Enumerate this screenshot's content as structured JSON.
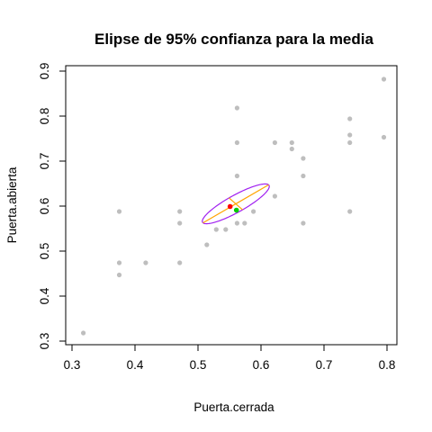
{
  "chart_data": {
    "type": "scatter",
    "title": "Elipse de 95% confianza para la media",
    "xlabel": "Puerta.cerrada",
    "ylabel": "Puerta.abierta",
    "xlim": [
      0.3,
      0.8
    ],
    "ylim": [
      0.3,
      0.9
    ],
    "xticks": [
      0.3,
      0.4,
      0.5,
      0.6,
      0.7,
      0.8
    ],
    "yticks": [
      0.3,
      0.4,
      0.5,
      0.6,
      0.7,
      0.8,
      0.9
    ],
    "grid": false,
    "colors": {
      "points": "#bebebe",
      "ellipse": "#a020f0",
      "axes_lines": "#ffa500",
      "mean_point": "#ff0000",
      "center_point": "#00cd00"
    },
    "points": [
      [
        0.318,
        0.318
      ],
      [
        0.375,
        0.588
      ],
      [
        0.375,
        0.474
      ],
      [
        0.375,
        0.447
      ],
      [
        0.417,
        0.474
      ],
      [
        0.471,
        0.588
      ],
      [
        0.471,
        0.562
      ],
      [
        0.471,
        0.474
      ],
      [
        0.514,
        0.514
      ],
      [
        0.529,
        0.548
      ],
      [
        0.544,
        0.548
      ],
      [
        0.562,
        0.818
      ],
      [
        0.562,
        0.741
      ],
      [
        0.562,
        0.667
      ],
      [
        0.562,
        0.562
      ],
      [
        0.574,
        0.562
      ],
      [
        0.588,
        0.588
      ],
      [
        0.622,
        0.741
      ],
      [
        0.622,
        0.622
      ],
      [
        0.649,
        0.741
      ],
      [
        0.649,
        0.727
      ],
      [
        0.667,
        0.706
      ],
      [
        0.667,
        0.667
      ],
      [
        0.667,
        0.562
      ],
      [
        0.741,
        0.794
      ],
      [
        0.741,
        0.758
      ],
      [
        0.741,
        0.741
      ],
      [
        0.741,
        0.588
      ],
      [
        0.795,
        0.882
      ],
      [
        0.795,
        0.753
      ]
    ],
    "ellipse": {
      "center": [
        0.56,
        0.605
      ],
      "semi_major": 0.067,
      "semi_minor": 0.017,
      "angle_deg": 39
    },
    "mean_point": [
      0.551,
      0.599
    ],
    "center_point": [
      0.561,
      0.591
    ]
  }
}
